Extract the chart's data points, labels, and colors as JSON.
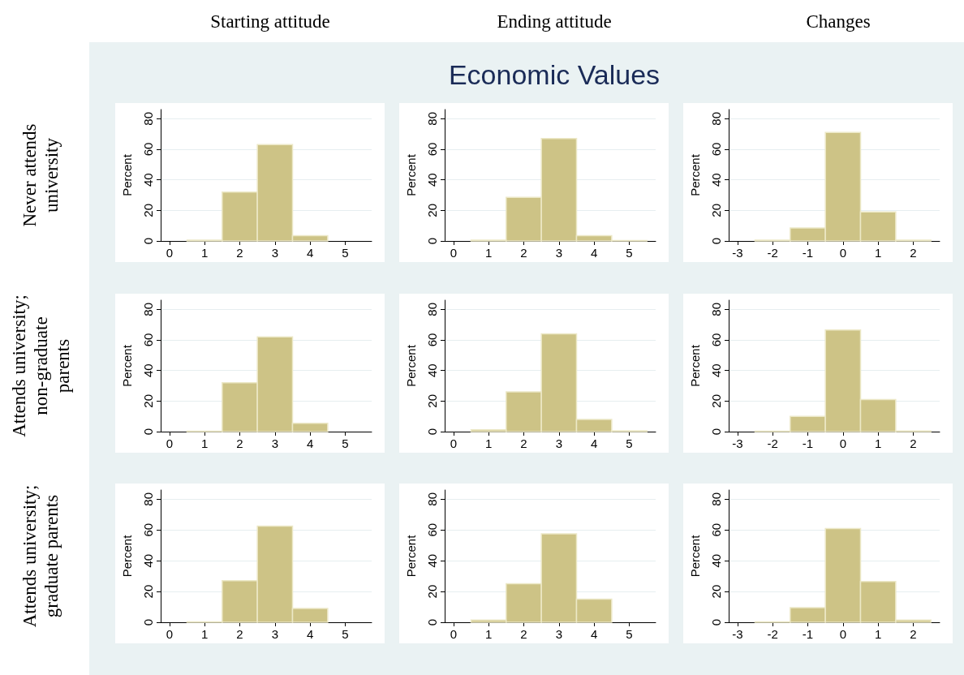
{
  "chart_data": [
    {
      "type": "histogram",
      "title": "Starting attitude",
      "annotations": [
        "Never attends\nuniversity"
      ],
      "ylabel": "Percent",
      "color": "#cdc386",
      "bins": [
        0.5,
        1.5,
        2.5,
        3.5,
        4.5
      ],
      "values": [
        0.5,
        32,
        63,
        3.5
      ],
      "xlim": [
        -0.25,
        5.75
      ],
      "xticks": [
        0,
        1,
        2,
        3,
        4,
        5
      ],
      "ylim": [
        0,
        86
      ],
      "yticks": [
        0,
        20,
        40,
        60,
        80
      ],
      "grid": "y"
    },
    {
      "type": "histogram",
      "title": "Ending attitude",
      "subtitle": "Economic Values",
      "ylabel": "Percent",
      "color": "#cdc386",
      "bins": [
        0.5,
        1.5,
        2.5,
        3.5,
        4.5,
        5.5
      ],
      "values": [
        0.5,
        28.5,
        67,
        3.5,
        0.2
      ],
      "xlim": [
        -0.25,
        5.75
      ],
      "xticks": [
        0,
        1,
        2,
        3,
        4,
        5
      ],
      "ylim": [
        0,
        86
      ],
      "yticks": [
        0,
        20,
        40,
        60,
        80
      ],
      "grid": "y"
    },
    {
      "type": "histogram",
      "title": "Changes",
      "ylabel": "Percent",
      "color": "#cdc386",
      "bins": [
        -2.5,
        -1.5,
        -0.5,
        0.5,
        1.5,
        2.5
      ],
      "values": [
        0.5,
        8.5,
        71,
        19,
        0.5
      ],
      "xlim": [
        -3.25,
        2.75
      ],
      "xticks": [
        -3,
        -2,
        -1,
        0,
        1,
        2
      ],
      "ylim": [
        0,
        86
      ],
      "yticks": [
        0,
        20,
        40,
        60,
        80
      ],
      "grid": "y"
    },
    {
      "type": "histogram",
      "annotations": [
        "Attends university;\nnon-graduate\nparents"
      ],
      "ylabel": "Percent",
      "color": "#cdc386",
      "bins": [
        0.5,
        1.5,
        2.5,
        3.5,
        4.5
      ],
      "values": [
        0.3,
        32,
        62,
        5.5
      ],
      "xlim": [
        -0.25,
        5.75
      ],
      "xticks": [
        0,
        1,
        2,
        3,
        4,
        5
      ],
      "ylim": [
        0,
        86
      ],
      "yticks": [
        0,
        20,
        40,
        60,
        80
      ],
      "grid": "y"
    },
    {
      "type": "histogram",
      "ylabel": "Percent",
      "color": "#cdc386",
      "bins": [
        0.5,
        1.5,
        2.5,
        3.5,
        4.5,
        5.5
      ],
      "values": [
        1.2,
        26,
        64,
        8,
        0.5
      ],
      "xlim": [
        -0.25,
        5.75
      ],
      "xticks": [
        0,
        1,
        2,
        3,
        4,
        5
      ],
      "ylim": [
        0,
        86
      ],
      "yticks": [
        0,
        20,
        40,
        60,
        80
      ],
      "grid": "y"
    },
    {
      "type": "histogram",
      "ylabel": "Percent",
      "color": "#cdc386",
      "bins": [
        -2.5,
        -1.5,
        -0.5,
        0.5,
        1.5,
        2.5
      ],
      "values": [
        0.3,
        10,
        66.5,
        21,
        0.4
      ],
      "xlim": [
        -3.25,
        2.75
      ],
      "xticks": [
        -3,
        -2,
        -1,
        0,
        1,
        2
      ],
      "ylim": [
        0,
        86
      ],
      "yticks": [
        0,
        20,
        40,
        60,
        80
      ],
      "grid": "y"
    },
    {
      "type": "histogram",
      "annotations": [
        "Attends university;\ngraduate parents"
      ],
      "ylabel": "Percent",
      "color": "#cdc386",
      "bins": [
        0.5,
        1.5,
        2.5,
        3.5,
        4.5
      ],
      "values": [
        0.3,
        27,
        62.5,
        9
      ],
      "xlim": [
        -0.25,
        5.75
      ],
      "xticks": [
        0,
        1,
        2,
        3,
        4,
        5
      ],
      "ylim": [
        0,
        86
      ],
      "yticks": [
        0,
        20,
        40,
        60,
        80
      ],
      "grid": "y"
    },
    {
      "type": "histogram",
      "ylabel": "Percent",
      "color": "#cdc386",
      "bins": [
        0.5,
        1.5,
        2.5,
        3.5,
        4.5
      ],
      "values": [
        1.5,
        25,
        57.5,
        15
      ],
      "xlim": [
        -0.25,
        5.75
      ],
      "xticks": [
        0,
        1,
        2,
        3,
        4,
        5
      ],
      "ylim": [
        0,
        86
      ],
      "yticks": [
        0,
        20,
        40,
        60,
        80
      ],
      "grid": "y"
    },
    {
      "type": "histogram",
      "ylabel": "Percent",
      "color": "#cdc386",
      "bins": [
        -2.5,
        -1.5,
        -0.5,
        0.5,
        1.5,
        2.5
      ],
      "values": [
        0.3,
        9.5,
        61,
        26.5,
        1.5
      ],
      "xlim": [
        -3.25,
        2.75
      ],
      "xticks": [
        -3,
        -2,
        -1,
        0,
        1,
        2
      ],
      "ylim": [
        0,
        86
      ],
      "yticks": [
        0,
        20,
        40,
        60,
        80
      ],
      "grid": "y"
    }
  ]
}
